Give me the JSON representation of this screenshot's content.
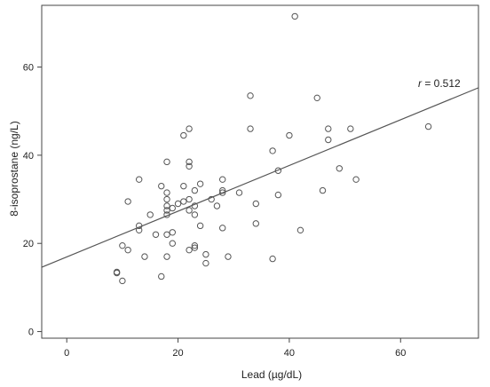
{
  "chart_data": {
    "type": "scatter",
    "title": "",
    "xlabel": "Lead (µg/dL)",
    "ylabel": "8-isoprostane (ng/L)",
    "xlim": [
      -4.5,
      74
    ],
    "ylim": [
      -1.5,
      74
    ],
    "xticks": [
      0,
      20,
      40,
      60
    ],
    "yticks": [
      0,
      20,
      40,
      60
    ],
    "grid": false,
    "legend": "none",
    "annotation": {
      "prefix": "r",
      "text": " = 0.512"
    },
    "colors": {
      "points": "#555555",
      "line": "#555555",
      "frame": "#444444",
      "background": "#ffffff"
    },
    "fit_line": {
      "x": [
        -4.5,
        74
      ],
      "y": [
        14.6,
        55.3
      ]
    },
    "series": [
      {
        "points": [
          [
            9,
            13.5
          ],
          [
            9,
            13.3
          ],
          [
            10,
            11.5
          ],
          [
            10,
            19.5
          ],
          [
            11,
            18.5
          ],
          [
            11,
            29.5
          ],
          [
            13,
            24
          ],
          [
            13,
            23
          ],
          [
            13,
            34.5
          ],
          [
            14,
            17
          ],
          [
            15,
            26.5
          ],
          [
            16,
            22
          ],
          [
            17,
            12.5
          ],
          [
            17,
            33
          ],
          [
            18,
            38.5
          ],
          [
            18,
            31.5
          ],
          [
            18,
            30
          ],
          [
            18,
            28.5
          ],
          [
            18,
            27.5
          ],
          [
            18,
            26.5
          ],
          [
            18,
            22
          ],
          [
            18,
            17
          ],
          [
            19,
            28
          ],
          [
            19,
            22.5
          ],
          [
            19,
            20
          ],
          [
            20,
            29
          ],
          [
            21,
            44.5
          ],
          [
            21,
            33
          ],
          [
            21,
            29.5
          ],
          [
            22,
            46
          ],
          [
            22,
            38.5
          ],
          [
            22,
            37.5
          ],
          [
            22,
            30
          ],
          [
            22,
            27.5
          ],
          [
            22,
            18.5
          ],
          [
            23,
            32
          ],
          [
            23,
            28.5
          ],
          [
            23,
            26.5
          ],
          [
            23,
            19.5
          ],
          [
            23,
            19
          ],
          [
            24,
            33.5
          ],
          [
            24,
            24
          ],
          [
            25,
            17.5
          ],
          [
            25,
            15.5
          ],
          [
            26,
            30
          ],
          [
            27,
            28.5
          ],
          [
            28,
            34.5
          ],
          [
            28,
            32
          ],
          [
            28,
            31.5
          ],
          [
            28,
            23.5
          ],
          [
            29,
            17
          ],
          [
            31,
            31.5
          ],
          [
            33,
            53.5
          ],
          [
            33,
            46
          ],
          [
            34,
            29
          ],
          [
            34,
            24.5
          ],
          [
            37,
            41
          ],
          [
            37,
            16.5
          ],
          [
            38,
            36.5
          ],
          [
            38,
            31
          ],
          [
            40,
            44.5
          ],
          [
            41,
            71.5
          ],
          [
            42,
            23
          ],
          [
            45,
            53
          ],
          [
            46,
            32
          ],
          [
            47,
            46
          ],
          [
            47,
            43.5
          ],
          [
            49,
            37
          ],
          [
            51,
            46
          ],
          [
            52,
            34.5
          ],
          [
            65,
            46.5
          ]
        ]
      }
    ]
  }
}
